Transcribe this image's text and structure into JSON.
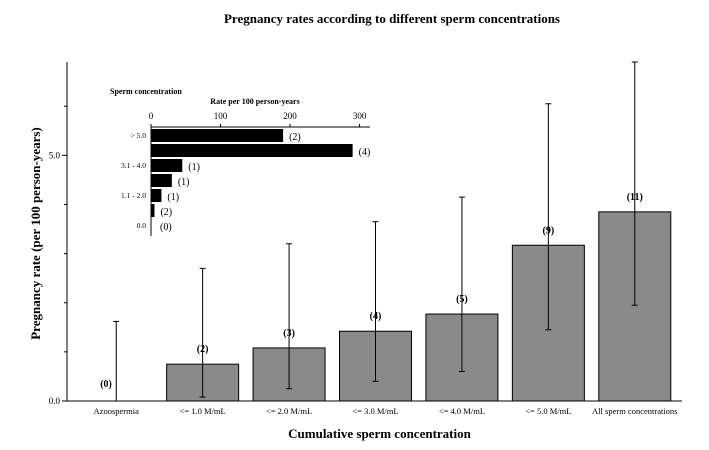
{
  "chart_data": [
    {
      "type": "bar",
      "title": "Pregnancy rates according to different sperm concentrations",
      "xlabel": "Cumulative sperm concentration",
      "ylabel": "Pregnancy rate (per 100 person-years)",
      "ylim": [
        0,
        6.9
      ],
      "yticks": [
        "0.0",
        "5.0"
      ],
      "categories": [
        "Azoospermia",
        "<= 1.0 M/mL",
        "<= 2.0 M/mL",
        "<= 3.0 M/mL",
        "<= 4.0 M/mL",
        "<= 5.0 M/mL",
        "All sperm concentrations"
      ],
      "values": [
        0.0,
        0.75,
        1.08,
        1.42,
        1.77,
        3.17,
        3.85
      ],
      "error_low": [
        0.0,
        0.08,
        0.25,
        0.4,
        0.6,
        1.45,
        1.95
      ],
      "error_high": [
        1.62,
        2.7,
        3.2,
        3.65,
        4.15,
        6.05,
        6.9
      ],
      "counts": [
        "(0)",
        "(2)",
        "(3)",
        "(4)",
        "(5)",
        "(9)",
        "(11)"
      ],
      "bar_color": "#8a8a8a",
      "grid": false
    },
    {
      "type": "bar",
      "orientation": "horizontal",
      "xlabel": "Rate per 100 person-years",
      "ylabel": "Sperm concentration",
      "xlim": [
        0,
        315
      ],
      "xticks": [
        "0",
        "100",
        "200",
        "300"
      ],
      "category_labels": [
        "> 5.0",
        "",
        "3.1 - 4.0",
        "",
        "1.1 - 2.0",
        "",
        "0.0"
      ],
      "values": [
        190,
        290,
        45,
        30,
        15,
        5,
        0
      ],
      "counts": [
        "(2)",
        "(4)",
        "(1)",
        "(1)",
        "(1)",
        "(2)",
        "(0)"
      ],
      "bar_color": "#000000"
    }
  ]
}
